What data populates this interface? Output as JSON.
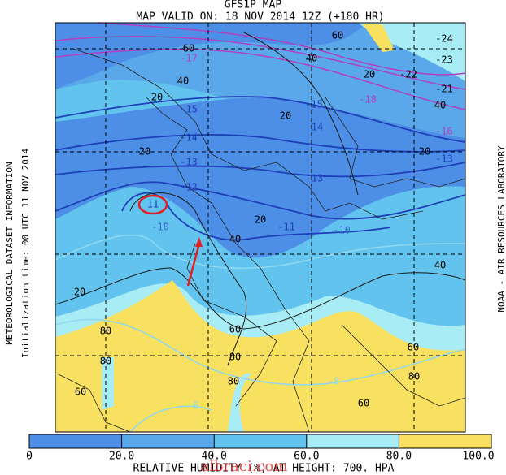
{
  "header": {
    "title": "GFS1P MAP",
    "subtitle": "MAP VALID ON: 18 NOV 2014 12Z (+180 HR)"
  },
  "side": {
    "left_1": "METEOROLOGICAL DATASET INFORMATION",
    "left_2": "Initialization time: 00 UTC 11 NOV 2014",
    "right": "NOAA - AIR RESOURCES LABORATORY"
  },
  "map": {
    "contour_labels": [
      "60",
      "-17",
      "60",
      "-24",
      "-23",
      "40",
      "20",
      "-22",
      "-21",
      "40",
      "40",
      "-18",
      "-16",
      "20",
      "-15",
      "-15",
      "14",
      "20",
      "-14",
      "20",
      "20",
      "-13",
      "-13",
      "13",
      "-12",
      "-11",
      "-10",
      "20",
      "11",
      "40",
      "40",
      "-10",
      "20",
      "80",
      "60",
      "80",
      "60",
      "80",
      "80",
      "80",
      "60",
      "60",
      "-6",
      "-8"
    ]
  },
  "colorbar": {
    "ticks": [
      0,
      {
        "value": 20,
        "label": "20.0"
      },
      {
        "value": 40,
        "label": "40.0"
      },
      {
        "value": 60,
        "label": "60.0"
      },
      {
        "value": 80,
        "label": "80.0"
      },
      {
        "value": 100,
        "label": "100.0"
      }
    ],
    "colors": [
      "#4d8fe6",
      "#5aa8ea",
      "#62c4ee",
      "#a8ecf5",
      "#f8e060"
    ]
  },
  "footer": {
    "field": "RELATIVE HUMIDITY (%) AT HEIGHT: 700. HPA",
    "watermark": "albraci.com"
  }
}
